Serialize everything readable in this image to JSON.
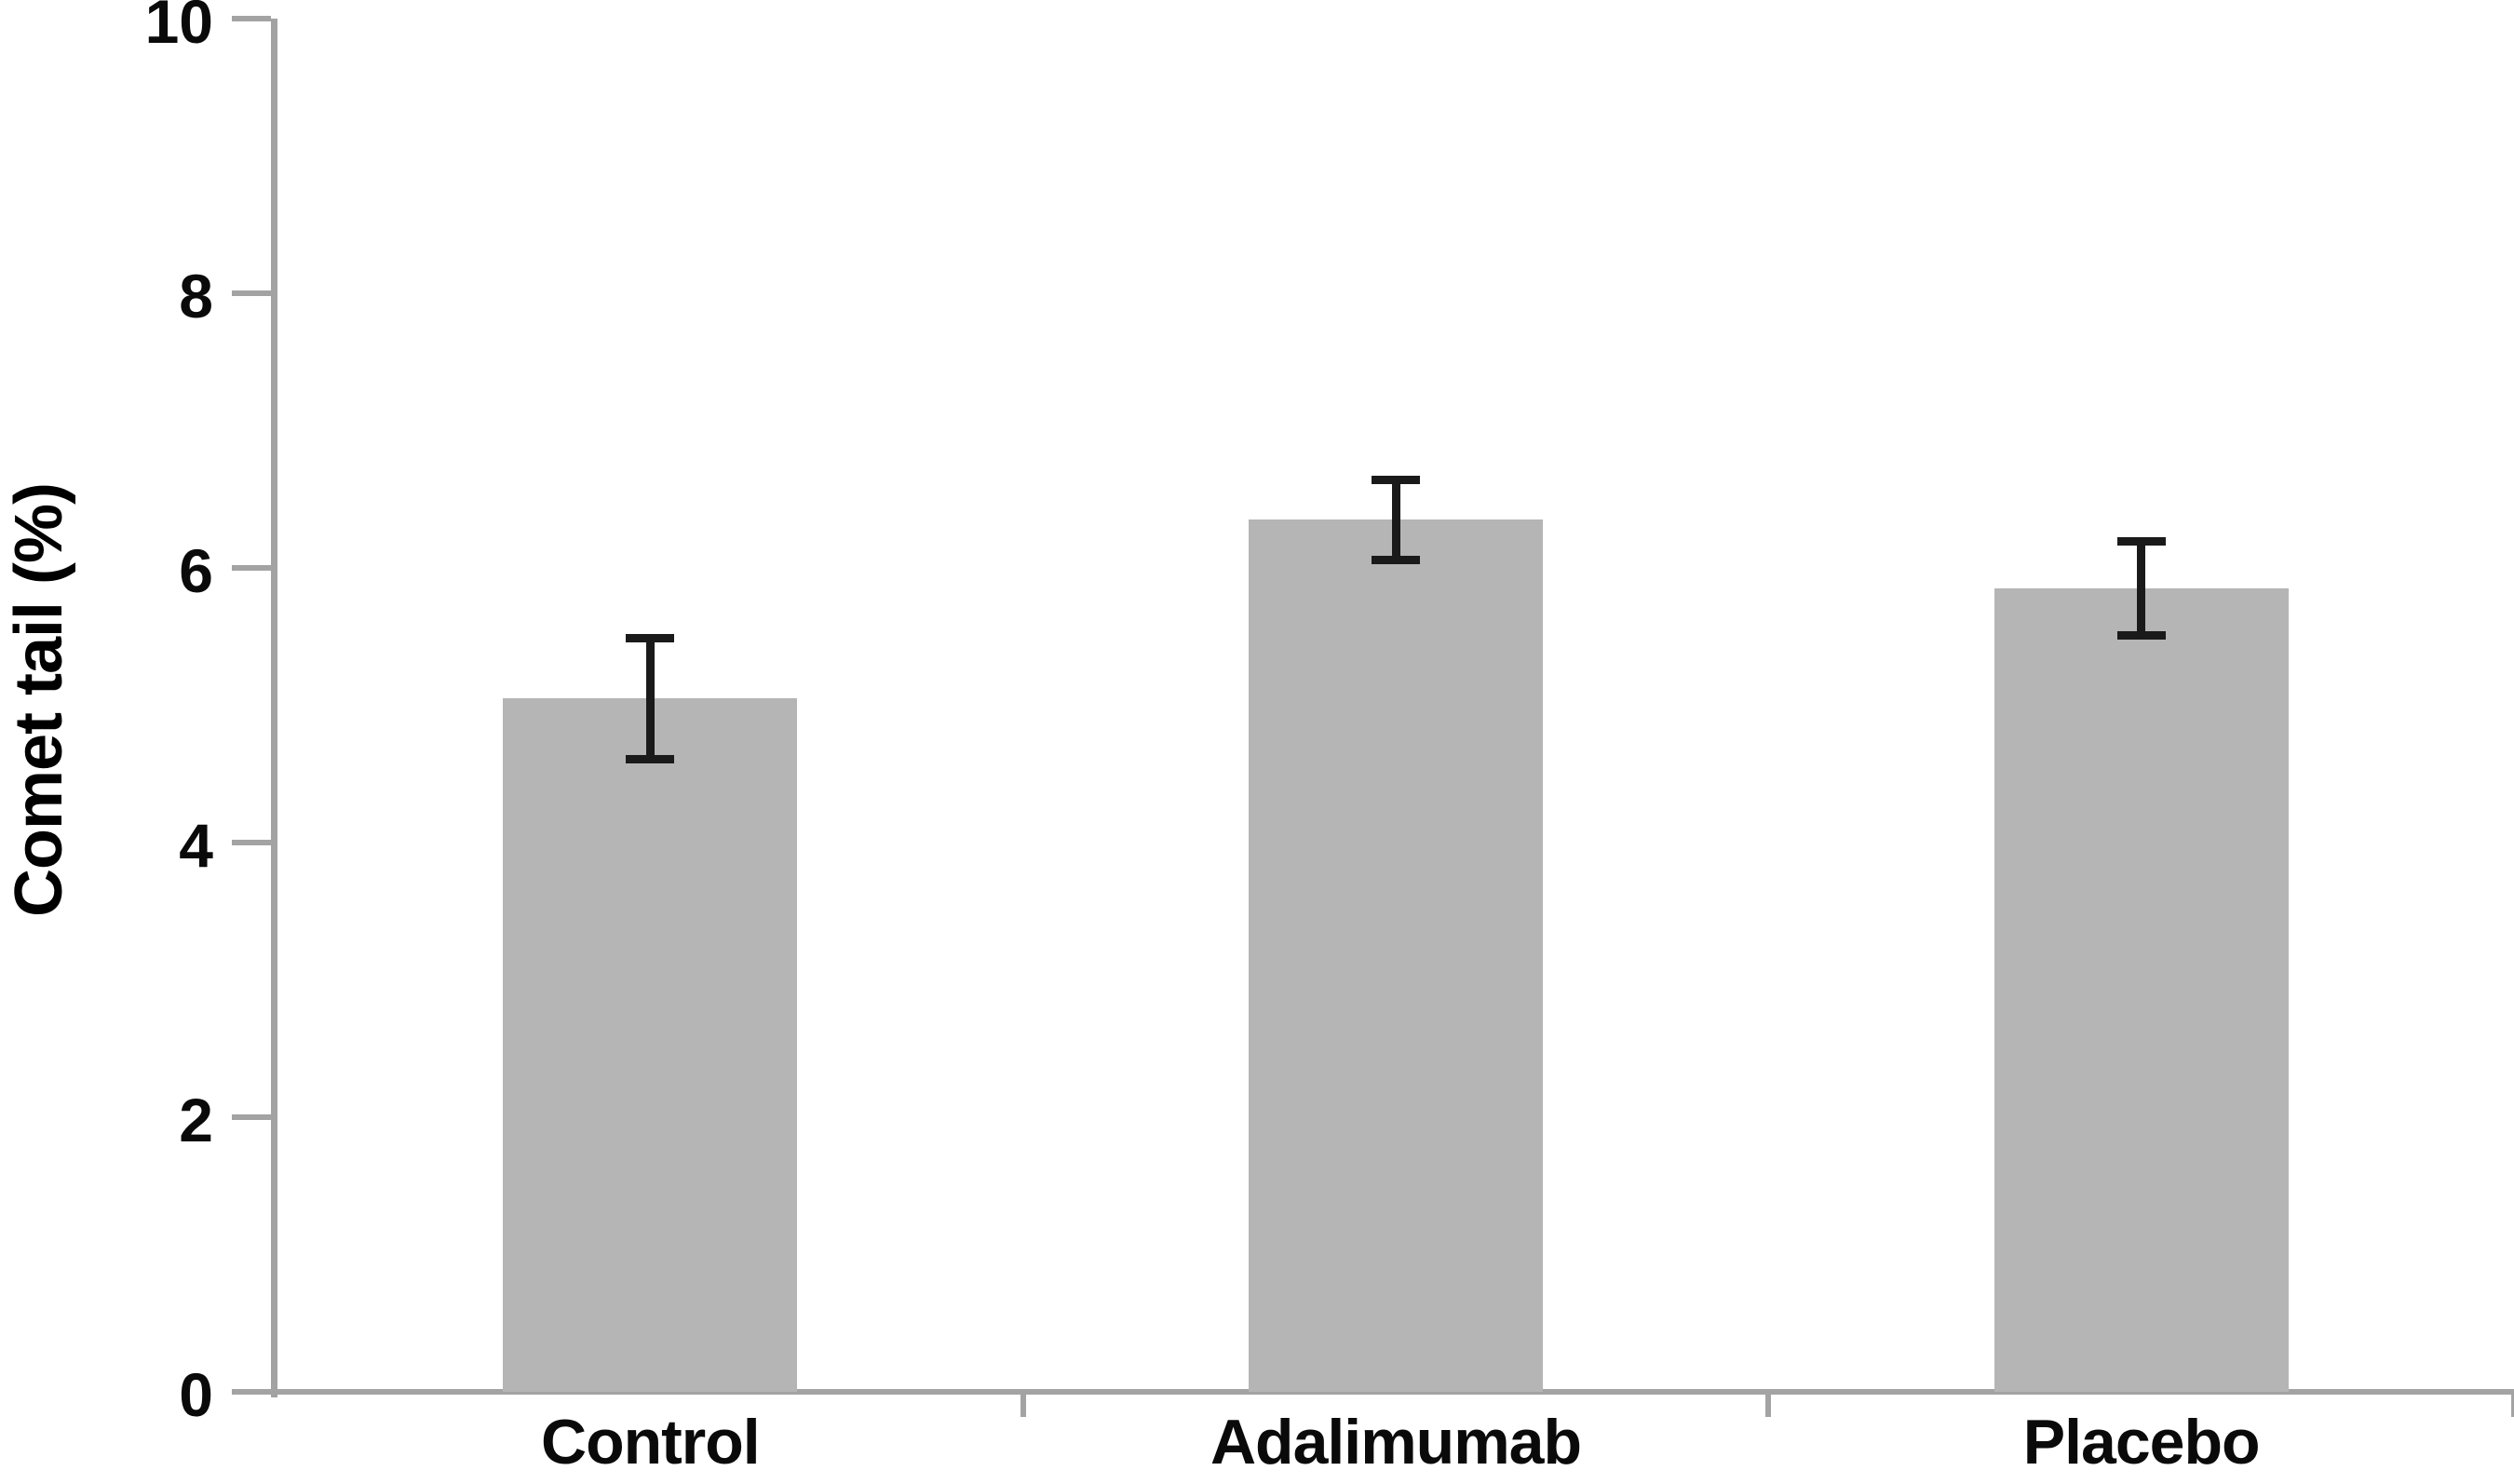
{
  "chart_data": {
    "type": "bar",
    "title": "",
    "ylabel": "Comet tail (%)",
    "xlabel": "",
    "categories": [
      "Control",
      "Adalimumab",
      "Placebo"
    ],
    "values": [
      5.05,
      6.35,
      5.85
    ],
    "errors": [
      0.44,
      0.29,
      0.34
    ],
    "ylim": [
      0,
      10
    ],
    "yticks": [
      0,
      2,
      4,
      6,
      8,
      10
    ],
    "grid": false,
    "legend": false,
    "bar_color": "#b5b5b5",
    "axis_color": "#a3a3a3",
    "error_bar_color": "#1a1a1a",
    "text_color": "#0a0a0a",
    "background_color": "#ffffff"
  }
}
